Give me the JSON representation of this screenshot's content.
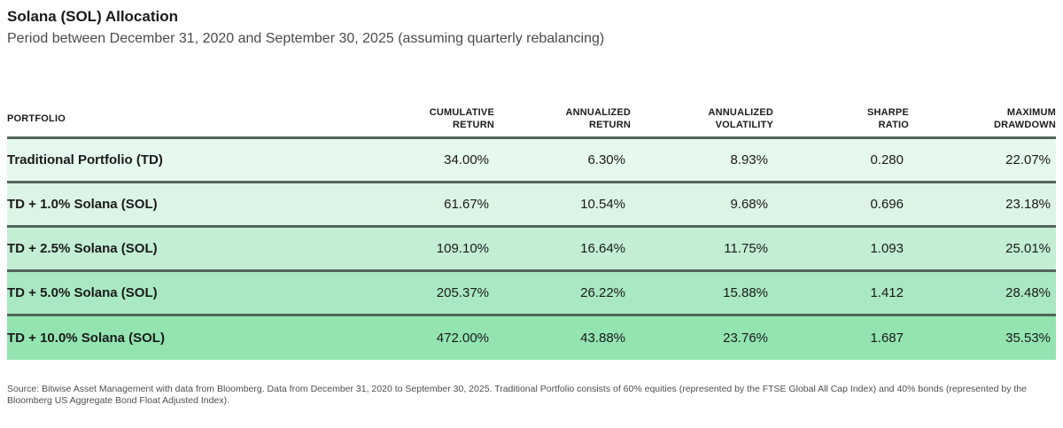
{
  "header": {
    "title": "Solana (SOL) Allocation",
    "subtitle": "Period between December 31, 2020 and September 30, 2025 (assuming quarterly rebalancing)"
  },
  "table": {
    "columns": [
      {
        "label": "PORTFOLIO"
      },
      {
        "label": "CUMULATIVE\nRETURN"
      },
      {
        "label": "ANNUALIZED\nRETURN"
      },
      {
        "label": "ANNUALIZED\nVOLATILITY"
      },
      {
        "label": "SHARPE\nRATIO"
      },
      {
        "label": "MAXIMUM\nDRAWDOWN"
      }
    ],
    "rows": [
      {
        "cells": [
          "Traditional Portfolio (TD)",
          "34.00%",
          "6.30%",
          "8.93%",
          "0.280",
          "22.07%"
        ],
        "bg": "#e6f9ee"
      },
      {
        "cells": [
          "TD + 1.0% Solana (SOL)",
          "61.67%",
          "10.54%",
          "9.68%",
          "0.696",
          "23.18%"
        ],
        "bg": "#dcf4e6"
      },
      {
        "cells": [
          "TD + 2.5% Solana (SOL)",
          "109.10%",
          "16.64%",
          "11.75%",
          "1.093",
          "25.01%"
        ],
        "bg": "#c3eed4"
      },
      {
        "cells": [
          "TD + 5.0% Solana (SOL)",
          "205.37%",
          "26.22%",
          "15.88%",
          "1.412",
          "28.48%"
        ],
        "bg": "#a9e8c2"
      },
      {
        "cells": [
          "TD + 10.0% Solana (SOL)",
          "472.00%",
          "43.88%",
          "23.76%",
          "1.687",
          "35.53%"
        ],
        "bg": "#93e4b1"
      }
    ]
  },
  "footnote": "Source: Bitwise Asset Management with data from Bloomberg. Data from December 31, 2020 to September 30, 2025. Traditional Portfolio consists of 60% equities (represented by the FTSE Global All Cap Index) and 40% bonds (represented by the Bloomberg US Aggregate Bond Float Adjusted Index).",
  "colors": {
    "divider": "#54655b",
    "row_greens": [
      "#e6f9ee",
      "#dcf4e6",
      "#c3eed4",
      "#a9e8c2",
      "#93e4b1"
    ],
    "title_text": "#1a1a1a",
    "subtitle_text": "#4b4b4b",
    "footnote_text": "#4f4f4f"
  },
  "chart_data": {
    "type": "table",
    "title": "Solana (SOL) Allocation",
    "subtitle": "Period between December 31, 2020 and September 30, 2025 (assuming quarterly rebalancing)",
    "columns": [
      "Portfolio",
      "Cumulative Return",
      "Annualized Return",
      "Annualized Volatility",
      "Sharpe Ratio",
      "Maximum Drawdown"
    ],
    "rows": [
      [
        "Traditional Portfolio (TD)",
        "34.00%",
        "6.30%",
        "8.93%",
        "0.280",
        "22.07%"
      ],
      [
        "TD + 1.0% Solana (SOL)",
        "61.67%",
        "10.54%",
        "9.68%",
        "0.696",
        "23.18%"
      ],
      [
        "TD + 2.5% Solana (SOL)",
        "109.10%",
        "16.64%",
        "11.75%",
        "1.093",
        "25.01%"
      ],
      [
        "TD + 5.0% Solana (SOL)",
        "205.37%",
        "26.22%",
        "15.88%",
        "1.412",
        "28.48%"
      ],
      [
        "TD + 10.0% Solana (SOL)",
        "472.00%",
        "43.88%",
        "23.76%",
        "1.687",
        "35.53%"
      ]
    ],
    "source": "Bitwise Asset Management with data from Bloomberg"
  }
}
